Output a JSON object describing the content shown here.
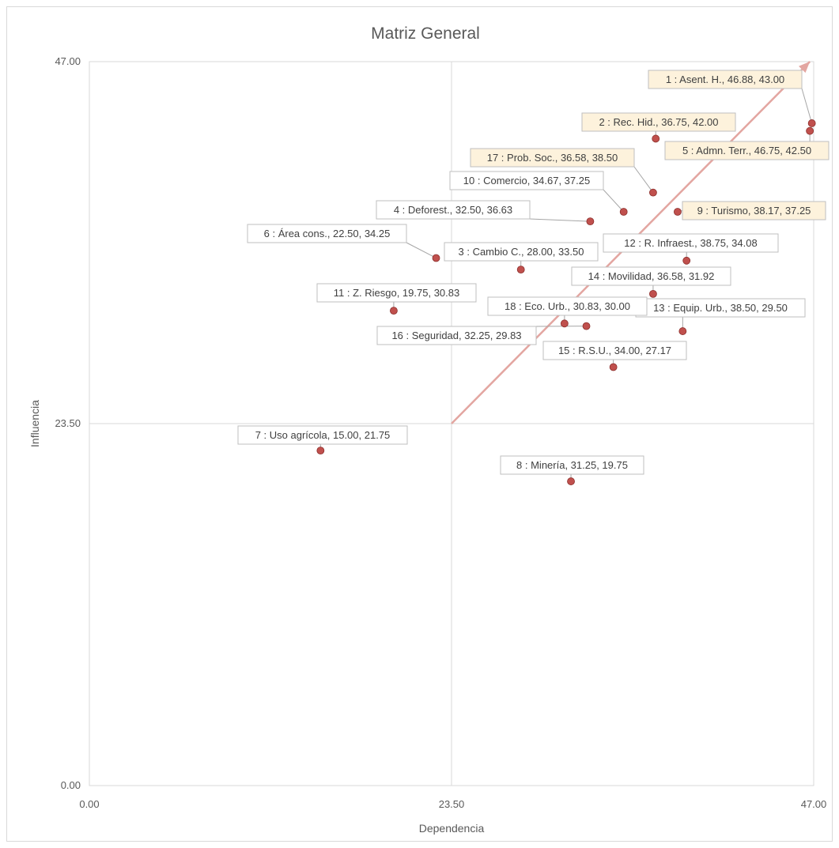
{
  "chart_data": {
    "type": "scatter",
    "title": "Matriz General",
    "xlabel": "Dependencia",
    "ylabel": "Influencia",
    "xlim": [
      0,
      47
    ],
    "ylim": [
      0,
      47
    ],
    "x_ticks": [
      "0.00",
      "23.50",
      "47.00"
    ],
    "y_ticks": [
      "0.00",
      "23.50",
      "47.00"
    ],
    "quadrant_lines": {
      "x": 23.5,
      "y": 23.5
    },
    "arrow": {
      "from": [
        23.5,
        23.5
      ],
      "to": [
        46.75,
        47.0
      ],
      "color": "#e3a6a1"
    },
    "point_color": "#c0504d",
    "highlight_fill": "#fdf2dc",
    "points": [
      {
        "id": 1,
        "label": "1 : Asent. H., 46.88, 43.00",
        "x": 46.88,
        "y": 43.0,
        "highlight": true
      },
      {
        "id": 2,
        "label": "2 : Rec. Hid., 36.75, 42.00",
        "x": 36.75,
        "y": 42.0,
        "highlight": true
      },
      {
        "id": 3,
        "label": "3 : Cambio C., 28.00, 33.50",
        "x": 28.0,
        "y": 33.5,
        "highlight": false
      },
      {
        "id": 4,
        "label": "4 : Deforest., 32.50, 36.63",
        "x": 32.5,
        "y": 36.63,
        "highlight": false
      },
      {
        "id": 5,
        "label": "5 : Admn. Terr., 46.75, 42.50",
        "x": 46.75,
        "y": 42.5,
        "highlight": true
      },
      {
        "id": 6,
        "label": "6 : Área cons., 22.50, 34.25",
        "x": 22.5,
        "y": 34.25,
        "highlight": false
      },
      {
        "id": 7,
        "label": "7 : Uso agrícola, 15.00, 21.75",
        "x": 15.0,
        "y": 21.75,
        "highlight": false
      },
      {
        "id": 8,
        "label": "8 : Minería, 31.25, 19.75",
        "x": 31.25,
        "y": 19.75,
        "highlight": false
      },
      {
        "id": 9,
        "label": "9 : Turismo, 38.17, 37.25",
        "x": 38.17,
        "y": 37.25,
        "highlight": true
      },
      {
        "id": 10,
        "label": "10 : Comercio, 34.67, 37.25",
        "x": 34.67,
        "y": 37.25,
        "highlight": false
      },
      {
        "id": 11,
        "label": "11 : Z. Riesgo, 19.75, 30.83",
        "x": 19.75,
        "y": 30.83,
        "highlight": false
      },
      {
        "id": 12,
        "label": "12 : R. Infraest., 38.75, 34.08",
        "x": 38.75,
        "y": 34.08,
        "highlight": false
      },
      {
        "id": 13,
        "label": "13 : Equip. Urb., 38.50, 29.50",
        "x": 38.5,
        "y": 29.5,
        "highlight": false
      },
      {
        "id": 14,
        "label": "14 : Movilidad, 36.58, 31.92",
        "x": 36.58,
        "y": 31.92,
        "highlight": false
      },
      {
        "id": 15,
        "label": "15 : R.S.U., 34.00, 27.17",
        "x": 34.0,
        "y": 27.17,
        "highlight": false
      },
      {
        "id": 16,
        "label": "16 : Seguridad, 32.25, 29.83",
        "x": 32.25,
        "y": 29.83,
        "highlight": false
      },
      {
        "id": 17,
        "label": "17 : Prob. Soc., 36.58, 38.50",
        "x": 36.58,
        "y": 38.5,
        "highlight": true
      },
      {
        "id": 18,
        "label": "18 : Eco. Urb., 30.83, 30.00",
        "x": 30.83,
        "y": 30.0,
        "highlight": false
      }
    ]
  }
}
